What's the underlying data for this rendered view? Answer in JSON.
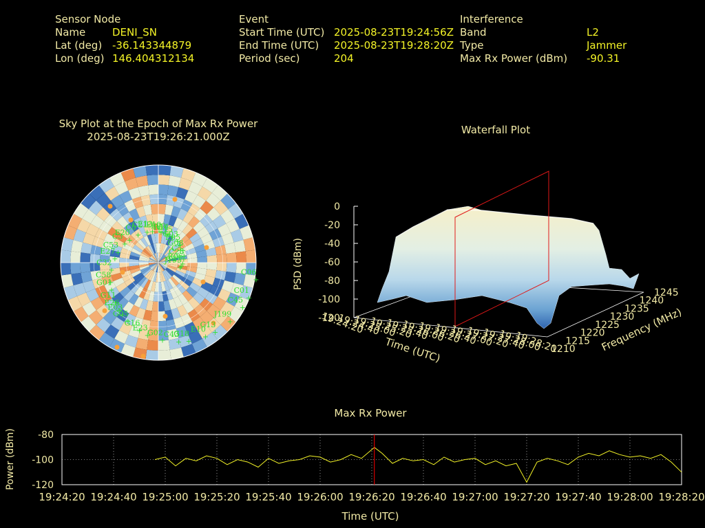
{
  "colors": {
    "background": "#000000",
    "label": "#f2eaa6",
    "value": "#f4f427",
    "satellite": "#2fe02f",
    "marker": "#ff0000",
    "trace": "#f4f427",
    "jam": "#f7a13a"
  },
  "info": {
    "sensor": {
      "heading": "Sensor Node",
      "rows": [
        {
          "label": "Name",
          "value": "DENI_SN"
        },
        {
          "label": "Lat (deg)",
          "value": "-36.143344879"
        },
        {
          "label": "Lon (deg)",
          "value": "146.404312134"
        }
      ]
    },
    "event": {
      "heading": "Event",
      "rows": [
        {
          "label": "Start Time (UTC)",
          "value": "2025-08-23T19:24:56Z"
        },
        {
          "label": "End Time (UTC)",
          "value": "2025-08-23T19:28:20Z"
        },
        {
          "label": "Period (sec)",
          "value": "204"
        }
      ]
    },
    "interference": {
      "heading": "Interference",
      "rows": [
        {
          "label": "Band",
          "value": "L2"
        },
        {
          "label": "Type",
          "value": "Jammer"
        },
        {
          "label": "Max Rx Power (dBm)",
          "value": "-90.31"
        }
      ]
    }
  },
  "chart_data": [
    {
      "type": "scatter",
      "title": "Sky Plot at the Epoch of Max Rx Power",
      "subtitle": "2025-08-23T19:26:21.000Z",
      "satellites": [
        "J195",
        "E26",
        "R14",
        "G13",
        "E27",
        "C5",
        "E23",
        "C21",
        "C01",
        "G01",
        "G03",
        "G18",
        "C3",
        "R06",
        "G05",
        "E10",
        "J199",
        "C32",
        "G08",
        "G02",
        "C0",
        "C06",
        "G11",
        "E15",
        "E10",
        "C53",
        "C28",
        "G16",
        "E13",
        "C45",
        "C58",
        "E05",
        "C43",
        "E20",
        "G27",
        "E03",
        "E29"
      ]
    },
    {
      "type": "area",
      "title": "Waterfall Plot",
      "zlabel": "PSD (dBm)",
      "xlabel": "Time (UTC)",
      "ylabel": "Frequency (MHz)",
      "zticks": [
        "0",
        "-20",
        "-40",
        "-60",
        "-80",
        "-100",
        "-120"
      ],
      "yticks": [
        "1210",
        "1215",
        "1220",
        "1225",
        "1230",
        "1235",
        "1240",
        "1245"
      ],
      "xticks": [
        "19:24:20",
        "19:24:40",
        "19:25:00",
        "19:25:20",
        "19:25:40",
        "19:26:00",
        "19:26:20",
        "19:26:40",
        "19:27:00",
        "19:27:20",
        "19:27:40",
        "19:28:00",
        "19:28:20"
      ],
      "zlim": [
        -120,
        0
      ],
      "ylim": [
        1210,
        1245
      ]
    },
    {
      "type": "line",
      "title": "Max Rx Power",
      "xlabel": "Time (UTC)",
      "ylabel": "Power (dBm)",
      "yticks": [
        "-80",
        "-100",
        "-120"
      ],
      "xticks": [
        "19:24:20",
        "19:24:40",
        "19:25:00",
        "19:25:20",
        "19:25:40",
        "19:26:00",
        "19:26:20",
        "19:26:40",
        "19:27:00",
        "19:27:20",
        "19:27:40",
        "19:28:00",
        "19:28:20"
      ],
      "ylim": [
        -120,
        -80
      ],
      "xlim": [
        "19:24:20",
        "19:28:20"
      ],
      "grid": true,
      "marker_time": "19:26:21",
      "series": [
        {
          "times": [
            "19:24:56",
            "19:25:00",
            "19:25:04",
            "19:25:08",
            "19:25:12",
            "19:25:16",
            "19:25:20",
            "19:25:24",
            "19:25:28",
            "19:25:32",
            "19:25:36",
            "19:25:40",
            "19:25:44",
            "19:25:48",
            "19:25:52",
            "19:25:56",
            "19:26:00",
            "19:26:04",
            "19:26:08",
            "19:26:12",
            "19:26:16",
            "19:26:21",
            "19:26:24",
            "19:26:28",
            "19:26:32",
            "19:26:36",
            "19:26:40",
            "19:26:44",
            "19:26:48",
            "19:26:52",
            "19:26:56",
            "19:27:00",
            "19:27:04",
            "19:27:08",
            "19:27:12",
            "19:27:16",
            "19:27:20",
            "19:27:24",
            "19:27:28",
            "19:27:32",
            "19:27:36",
            "19:27:40",
            "19:27:44",
            "19:27:48",
            "19:27:52",
            "19:27:56",
            "19:28:00",
            "19:28:04",
            "19:28:08",
            "19:28:12",
            "19:28:16",
            "19:28:20"
          ],
          "values": [
            -100,
            -98,
            -105,
            -99,
            -101,
            -97,
            -99,
            -104,
            -100,
            -102,
            -106,
            -99,
            -103,
            -101,
            -100,
            -97,
            -98,
            -102,
            -100,
            -96,
            -99,
            -90.31,
            -95,
            -103,
            -99,
            -101,
            -100,
            -104,
            -98,
            -102,
            -100,
            -99,
            -104,
            -101,
            -105,
            -103,
            -118,
            -102,
            -99,
            -101,
            -104,
            -98,
            -95,
            -97,
            -93,
            -96,
            -98,
            -97,
            -99,
            -96,
            -102,
            -110
          ]
        }
      ]
    }
  ]
}
